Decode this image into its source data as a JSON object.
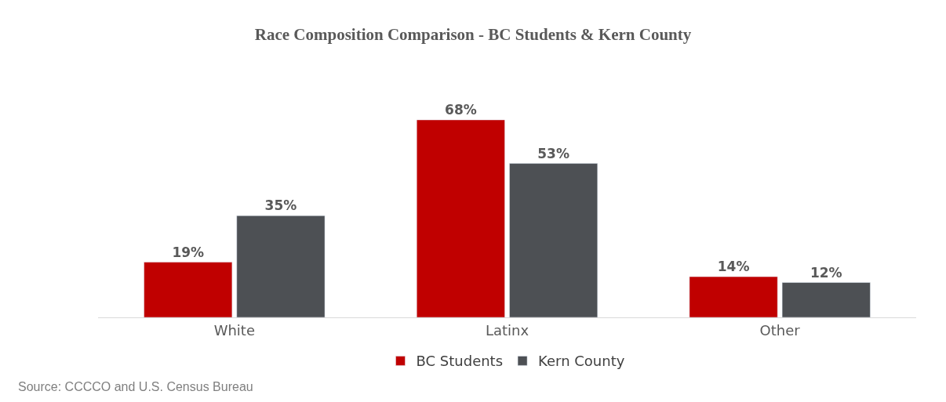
{
  "chart_data": {
    "type": "bar",
    "title": "Race Composition Comparison - BC Students & Kern County",
    "categories": [
      "White",
      "Latinx",
      "Other"
    ],
    "series": [
      {
        "name": "BC Students",
        "color": "#c00000",
        "values": [
          19,
          68,
          14
        ],
        "value_labels": [
          "19%",
          "68%",
          "14%"
        ]
      },
      {
        "name": "Kern County",
        "color": "#4d5054",
        "values": [
          35,
          53,
          12
        ],
        "value_labels": [
          "35%",
          "53%",
          "12%"
        ]
      }
    ],
    "legend": "bottom",
    "annotations": [
      "Source: CCCCO and U.S. Census Bureau"
    ]
  }
}
